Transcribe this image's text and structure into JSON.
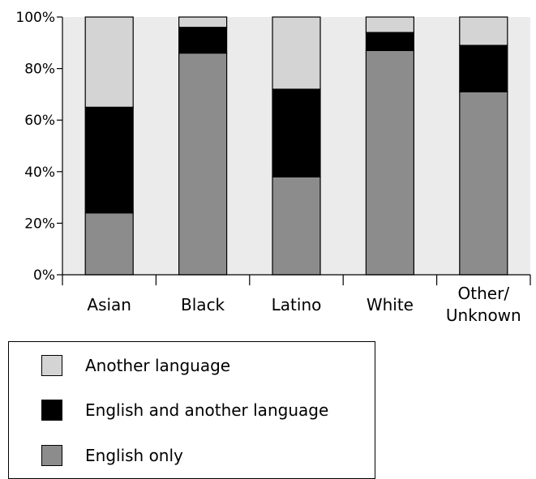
{
  "chart_data": {
    "type": "bar",
    "stacked": true,
    "categories": [
      "Asian",
      "Black",
      "Latino",
      "White",
      "Other/\nUnknown"
    ],
    "series": [
      {
        "name": "English only",
        "color": "#8c8c8c",
        "values": [
          24,
          86,
          38,
          87,
          71
        ]
      },
      {
        "name": "English and another language",
        "color": "#000000",
        "values": [
          41,
          10,
          34,
          7,
          18
        ]
      },
      {
        "name": "Another language",
        "color": "#d4d4d4",
        "values": [
          35,
          4,
          28,
          6,
          11
        ]
      }
    ],
    "y_ticks": [
      "0%",
      "20%",
      "40%",
      "60%",
      "80%",
      "100%"
    ],
    "ylim": [
      0,
      100
    ],
    "plot_background": "#ebebeb",
    "legend_position": "bottom-left"
  },
  "legend": {
    "items": [
      {
        "label": "Another language",
        "color": "#d4d4d4"
      },
      {
        "label": "English and another language",
        "color": "#000000"
      },
      {
        "label": "English only",
        "color": "#8c8c8c"
      }
    ]
  }
}
